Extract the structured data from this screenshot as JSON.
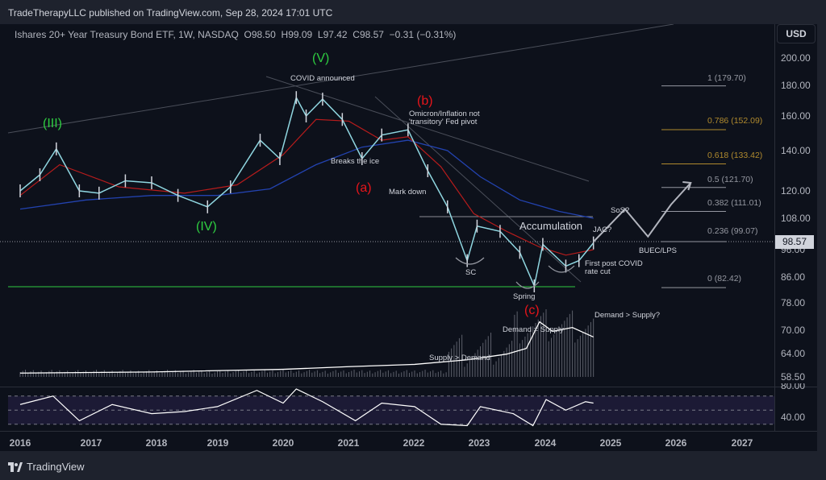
{
  "header": {
    "published": "TradeTherapyLLC published on TradingView.com, Sep 28, 2024 17:01 UTC"
  },
  "legend": {
    "symbol": "Ishares 20+ Year Treasury Bond ETF, 1W, NASDAQ",
    "open": "O98.50",
    "high": "H99.09",
    "low": "L97.42",
    "close": "C98.57",
    "change": "−0.31 (−0.31%)"
  },
  "axis": {
    "currency": "USD",
    "price_ticks": [
      "200.00",
      "180.00",
      "160.00",
      "140.00",
      "120.00",
      "108.00",
      "96.00",
      "86.00"
    ],
    "volume_ticks": [
      "78.00",
      "70.00",
      "64.00",
      "58.50"
    ],
    "rsi_ticks": [
      "80.00",
      "40.00"
    ],
    "current_price": "98.57",
    "years": [
      "2016",
      "2017",
      "2018",
      "2019",
      "2020",
      "2021",
      "2022",
      "2023",
      "2024",
      "2025",
      "2026",
      "2027"
    ]
  },
  "annotations": {
    "covid": "COVID announced",
    "breaks": "Breaks the ice",
    "omicron1": "Omicron/Inflation not",
    "omicron2": "'transitory' Fed pivot",
    "markdown": "Mark down",
    "accumulation": "Accumulation",
    "sc": "SC",
    "spring": "Spring",
    "jac": "JAC?",
    "sos": "SoS?",
    "buec": "BUEC/LPS",
    "ratecut1": "First post COVID",
    "ratecut2": "rate cut",
    "demand_eq": "Demand = Supply",
    "supply_gt": "Supply > Demand",
    "demand_gt": "Demand > Supply?"
  },
  "waves": {
    "iii": "(III)",
    "iv": "(IV)",
    "v": "(V)",
    "a": "(a)",
    "b": "(b)",
    "c": "(c)"
  },
  "fib_levels": [
    {
      "label": "1 (179.70)",
      "value": 179.7
    },
    {
      "label": "0.786 (152.09)",
      "value": 152.09
    },
    {
      "label": "0.618 (133.42)",
      "value": 133.42
    },
    {
      "label": "0.5 (121.70)",
      "value": 121.7
    },
    {
      "label": "0.382 (111.01)",
      "value": 111.01
    },
    {
      "label": "0.236 (99.07)",
      "value": 99.07
    },
    {
      "label": "0 (82.42)",
      "value": 82.42
    }
  ],
  "footer": {
    "brand": "TradingView"
  },
  "colors": {
    "wave_green": "#2ecc40",
    "wave_red": "#e8151b",
    "fib_gold": "#b08a2e",
    "ma_blue": "#2343b0",
    "ma_red": "#b71c1c",
    "ma_orange": "#c7902e",
    "ma_teal": "#1e9c8a"
  },
  "chart_data": {
    "type": "line",
    "title": "Ishares 20+ Year Treasury Bond ETF, 1W, NASDAQ",
    "ylabel": "USD",
    "ylim": [
      80,
      205
    ],
    "price": {
      "x": [
        2016.0,
        2016.3,
        2016.55,
        2016.9,
        2017.2,
        2017.6,
        2018.0,
        2018.4,
        2018.85,
        2019.2,
        2019.65,
        2019.95,
        2020.2,
        2020.35,
        2020.6,
        2020.9,
        2021.2,
        2021.5,
        2021.9,
        2022.2,
        2022.5,
        2022.8,
        2022.95,
        2023.3,
        2023.6,
        2023.82,
        2023.95,
        2024.3,
        2024.5,
        2024.72
      ],
      "y": [
        120,
        128,
        141,
        120,
        119,
        125,
        124,
        118,
        113,
        122,
        146,
        136,
        172,
        160,
        171,
        158,
        136,
        149,
        152,
        130,
        113,
        92,
        105,
        103,
        95,
        83,
        98,
        90,
        92,
        98.57
      ]
    },
    "ma200": {
      "x": [
        2016.0,
        2017.0,
        2018.0,
        2019.0,
        2019.8,
        2020.5,
        2021.2,
        2021.9,
        2022.5,
        2023.0,
        2023.6,
        2024.2,
        2024.72
      ],
      "y": [
        112,
        116,
        118,
        118,
        121,
        133,
        142,
        146,
        140,
        127,
        116,
        111,
        108
      ]
    },
    "ma_red": {
      "x": [
        2016.0,
        2016.6,
        2017.5,
        2018.5,
        2019.3,
        2020.0,
        2020.5,
        2021.0,
        2021.5,
        2021.9,
        2022.4,
        2022.9,
        2023.4,
        2023.9,
        2024.3,
        2024.72
      ],
      "y": [
        118,
        133,
        122,
        119,
        123,
        138,
        158,
        157,
        146,
        148,
        132,
        110,
        103,
        97,
        94,
        96
      ]
    },
    "projection": {
      "x": [
        2024.72,
        2025.2,
        2025.55,
        2025.9,
        2026.2
      ],
      "y": [
        99,
        112,
        101,
        114,
        124
      ]
    },
    "volume_line": {
      "x": [
        2016.0,
        2018.0,
        2020.0,
        2021.0,
        2022.0,
        2022.8,
        2023.4,
        2023.7,
        2023.9,
        2024.1,
        2024.4,
        2024.72
      ],
      "y": [
        59.5,
        59.8,
        60.5,
        61.2,
        61.8,
        63.0,
        64.5,
        66,
        73,
        70.5,
        71.5,
        69
      ]
    },
    "rsi": {
      "x": [
        2016.0,
        2016.5,
        2016.9,
        2017.4,
        2018.0,
        2018.5,
        2019.0,
        2019.6,
        2020.0,
        2020.2,
        2020.6,
        2021.1,
        2021.5,
        2022.0,
        2022.4,
        2022.8,
        2023.0,
        2023.5,
        2023.8,
        2024.0,
        2024.3,
        2024.6,
        2024.72
      ],
      "y": [
        58,
        70,
        35,
        58,
        45,
        48,
        55,
        78,
        60,
        80,
        62,
        35,
        60,
        55,
        30,
        28,
        55,
        45,
        28,
        65,
        50,
        62,
        60
      ]
    }
  }
}
